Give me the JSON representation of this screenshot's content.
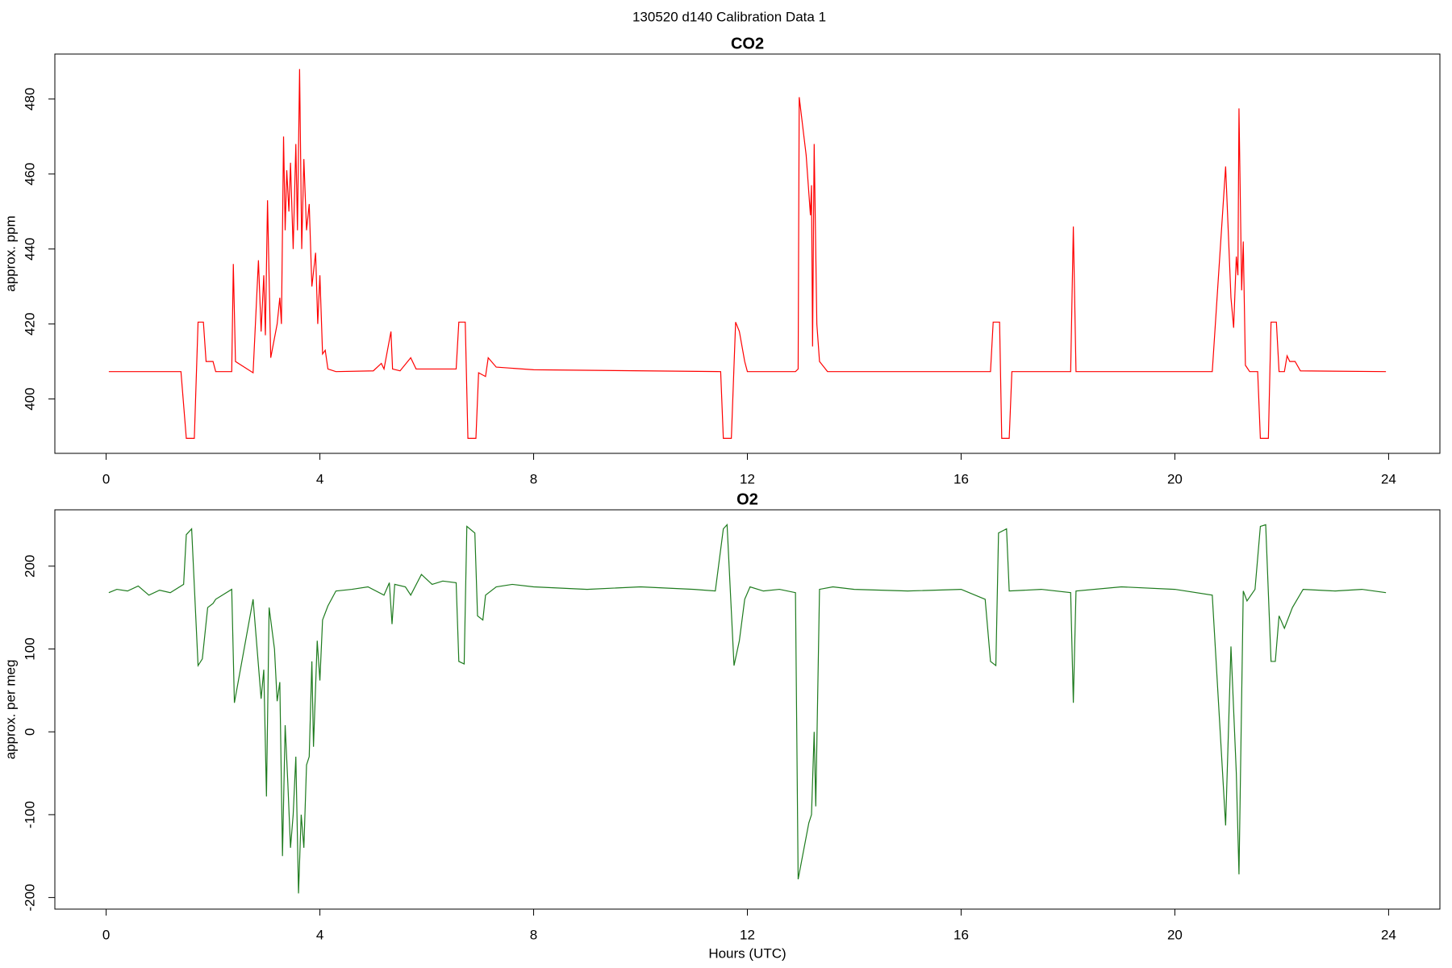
{
  "title": "130520   d140   Calibration Data 1",
  "chart_data": [
    {
      "type": "line",
      "title": "CO2",
      "ylabel": "approx. ppm",
      "color": "#ff0000",
      "xlim": [
        -0.96,
        24.96
      ],
      "xticks": [
        0,
        4,
        8,
        12,
        16,
        20,
        24
      ],
      "ylim": [
        385.5,
        492
      ],
      "yticks": [
        400,
        420,
        440,
        460,
        480
      ],
      "x": [
        0.05,
        1.4,
        1.5,
        1.65,
        1.72,
        1.82,
        1.87,
        2.0,
        2.05,
        2.35,
        2.38,
        2.42,
        2.75,
        2.85,
        2.9,
        2.95,
        2.98,
        3.02,
        3.08,
        3.2,
        3.25,
        3.28,
        3.32,
        3.35,
        3.38,
        3.42,
        3.45,
        3.5,
        3.55,
        3.58,
        3.62,
        3.66,
        3.7,
        3.75,
        3.8,
        3.85,
        3.92,
        3.96,
        4.0,
        4.05,
        4.1,
        4.15,
        4.3,
        5.0,
        5.15,
        5.2,
        5.33,
        5.36,
        5.5,
        5.7,
        5.8,
        6.55,
        6.6,
        6.72,
        6.77,
        6.92,
        6.97,
        7.1,
        7.15,
        7.3,
        8,
        11.5,
        11.55,
        11.7,
        11.78,
        11.85,
        11.95,
        12.0,
        12.9,
        12.95,
        12.97,
        13.1,
        13.18,
        13.2,
        13.22,
        13.25,
        13.3,
        13.35,
        13.5,
        16.55,
        16.6,
        16.72,
        16.76,
        16.9,
        16.95,
        18.05,
        18.1,
        18.15,
        20.7,
        20.95,
        21.05,
        21.1,
        21.15,
        21.18,
        21.2,
        21.25,
        21.28,
        21.32,
        21.4,
        21.55,
        21.6,
        21.75,
        21.8,
        21.9,
        21.95,
        22.05,
        22.1,
        22.15,
        22.25,
        22.35,
        23.95
      ],
      "values": [
        407.3,
        407.3,
        389.5,
        389.5,
        420.5,
        420.5,
        410,
        410,
        407.3,
        407.3,
        436,
        410,
        407,
        437,
        418,
        433,
        417,
        453,
        411,
        420,
        427,
        420,
        470,
        445,
        461,
        450,
        463,
        440,
        468,
        445,
        488,
        440,
        464,
        445,
        452,
        430,
        439,
        420,
        433,
        412,
        413,
        408,
        407.3,
        407.5,
        409.5,
        408,
        418,
        408,
        407.5,
        411,
        408,
        408,
        420.5,
        420.5,
        389.5,
        389.5,
        407,
        406,
        411,
        408.5,
        407.8,
        407.3,
        389.5,
        389.5,
        420.5,
        418,
        410,
        407.3,
        407.3,
        408,
        480.5,
        465,
        449,
        457,
        414,
        468,
        420,
        410,
        407.3,
        407.3,
        420.5,
        420.5,
        389.5,
        389.5,
        407.3,
        407.3,
        446,
        407.3,
        407.3,
        462,
        427,
        419,
        438,
        433,
        477.5,
        429,
        442,
        409,
        407.3,
        407.3,
        389.5,
        389.5,
        420.5,
        420.5,
        407.3,
        407.3,
        411.5,
        410,
        410,
        407.5,
        407.3
      ]
    },
    {
      "type": "line",
      "title": "O2",
      "ylabel": "approx. per meg",
      "xlabel": "Hours (UTC)",
      "color": "#1e7b1e",
      "xlim": [
        -0.96,
        24.96
      ],
      "xticks": [
        0,
        4,
        8,
        12,
        16,
        20,
        24
      ],
      "ylim": [
        -214,
        268
      ],
      "yticks": [
        -200,
        -100,
        0,
        100,
        200
      ],
      "x": [
        0.05,
        0.2,
        0.4,
        0.6,
        0.8,
        1.0,
        1.2,
        1.45,
        1.5,
        1.6,
        1.72,
        1.8,
        1.9,
        2.0,
        2.05,
        2.35,
        2.4,
        2.75,
        2.9,
        2.95,
        3.0,
        3.05,
        3.15,
        3.2,
        3.25,
        3.3,
        3.35,
        3.4,
        3.45,
        3.5,
        3.55,
        3.6,
        3.65,
        3.7,
        3.75,
        3.8,
        3.85,
        3.88,
        3.95,
        4.0,
        4.05,
        4.15,
        4.3,
        4.6,
        4.9,
        5.2,
        5.3,
        5.35,
        5.4,
        5.6,
        5.7,
        5.9,
        6.1,
        6.3,
        6.55,
        6.6,
        6.7,
        6.75,
        6.9,
        6.95,
        7.05,
        7.1,
        7.3,
        7.6,
        8.0,
        9,
        10,
        11,
        11.4,
        11.55,
        11.62,
        11.75,
        11.85,
        11.95,
        12.05,
        12.3,
        12.6,
        12.9,
        12.95,
        13.15,
        13.2,
        13.25,
        13.28,
        13.35,
        13.6,
        14,
        15,
        16,
        16.45,
        16.55,
        16.65,
        16.7,
        16.85,
        16.9,
        17.5,
        18.05,
        18.1,
        18.15,
        19,
        20,
        20.7,
        20.95,
        21.05,
        21.15,
        21.2,
        21.28,
        21.35,
        21.5,
        21.6,
        21.7,
        21.8,
        21.88,
        21.95,
        22.05,
        22.2,
        22.4,
        23,
        23.5,
        23.95
      ],
      "values": [
        168,
        172,
        170,
        176,
        165,
        171,
        168,
        178,
        238,
        245,
        80,
        88,
        150,
        155,
        160,
        172,
        35,
        160,
        40,
        75,
        -78,
        150,
        100,
        37,
        60,
        -150,
        8,
        -62,
        -140,
        -100,
        -30,
        -195,
        -100,
        -140,
        -40,
        -30,
        85,
        -18,
        110,
        62,
        135,
        152,
        170,
        172,
        175,
        165,
        180,
        130,
        178,
        175,
        165,
        190,
        178,
        182,
        180,
        85,
        82,
        248,
        240,
        140,
        135,
        165,
        175,
        178,
        175,
        172,
        175,
        172,
        170,
        245,
        250,
        80,
        110,
        160,
        175,
        170,
        172,
        168,
        -178,
        -110,
        -100,
        0,
        -90,
        172,
        175,
        172,
        170,
        172,
        160,
        85,
        80,
        240,
        245,
        170,
        172,
        168,
        35,
        170,
        175,
        172,
        165,
        -113,
        103,
        -50,
        -172,
        170,
        158,
        172,
        248,
        250,
        85,
        85,
        140,
        125,
        150,
        172,
        170,
        172,
        168
      ]
    }
  ]
}
